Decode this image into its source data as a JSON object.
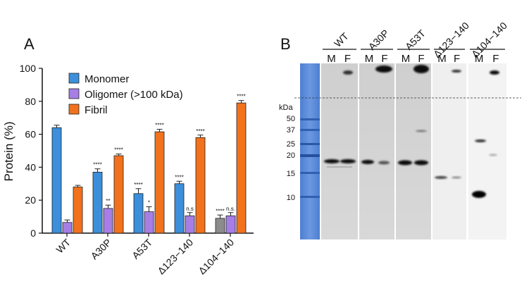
{
  "panel_a": {
    "letter": "A"
  },
  "panel_b": {
    "letter": "B"
  },
  "chart_data": {
    "type": "bar",
    "title": "",
    "xlabel": "",
    "ylabel": "Protein (%)",
    "ylim": [
      0,
      100
    ],
    "yticks": [
      "0",
      "20",
      "40",
      "60",
      "80",
      "100"
    ],
    "categories": [
      "WT",
      "A30P",
      "A53T",
      "Δ123−140",
      "Δ104−140"
    ],
    "legend_position": "top-left",
    "grid": false,
    "series": [
      {
        "name": "Monomer",
        "color": "#3b8fdb",
        "values": [
          64,
          37,
          24,
          30,
          9
        ],
        "errors": [
          1.5,
          2,
          3,
          1.5,
          2
        ],
        "sig": [
          "",
          "****",
          "****",
          "****",
          "****"
        ],
        "colors": [
          "#3b8fdb",
          "#3b8fdb",
          "#3b8fdb",
          "#3b8fdb",
          "#8c8c8c"
        ]
      },
      {
        "name": "Oligomer (>100 kDa)",
        "color": "#a67ee6",
        "values": [
          6.5,
          15,
          13,
          10.5,
          10.5
        ],
        "errors": [
          1.5,
          2,
          3,
          2,
          2
        ],
        "sig": [
          "",
          "**",
          "*",
          "n.s",
          "n.s."
        ],
        "colors": [
          "#a67ee6",
          "#a67ee6",
          "#a67ee6",
          "#a67ee6",
          "#a67ee6"
        ]
      },
      {
        "name": "Fibril",
        "color": "#f2711c",
        "values": [
          28,
          47,
          61.5,
          58,
          79
        ],
        "errors": [
          1,
          1,
          1.5,
          1.5,
          1.5
        ],
        "sig": [
          "",
          "****",
          "****",
          "****",
          "****"
        ],
        "colors": [
          "#f2711c",
          "#f2711c",
          "#f2711c",
          "#f2711c",
          "#f2711c"
        ]
      }
    ]
  },
  "gel": {
    "unit_label": "kDa",
    "markers": [
      "50",
      "37",
      "25",
      "20",
      "15",
      "10"
    ],
    "groups": [
      {
        "label": "WT",
        "lanes": [
          "M",
          "F"
        ]
      },
      {
        "label": "A30P",
        "lanes": [
          "M",
          "F"
        ]
      },
      {
        "label": "A53T",
        "lanes": [
          "M",
          "F"
        ]
      },
      {
        "label": "Δ123−140",
        "lanes": [
          "M",
          "F"
        ]
      },
      {
        "label": "Δ104−140",
        "lanes": [
          "M",
          "F"
        ]
      }
    ]
  }
}
